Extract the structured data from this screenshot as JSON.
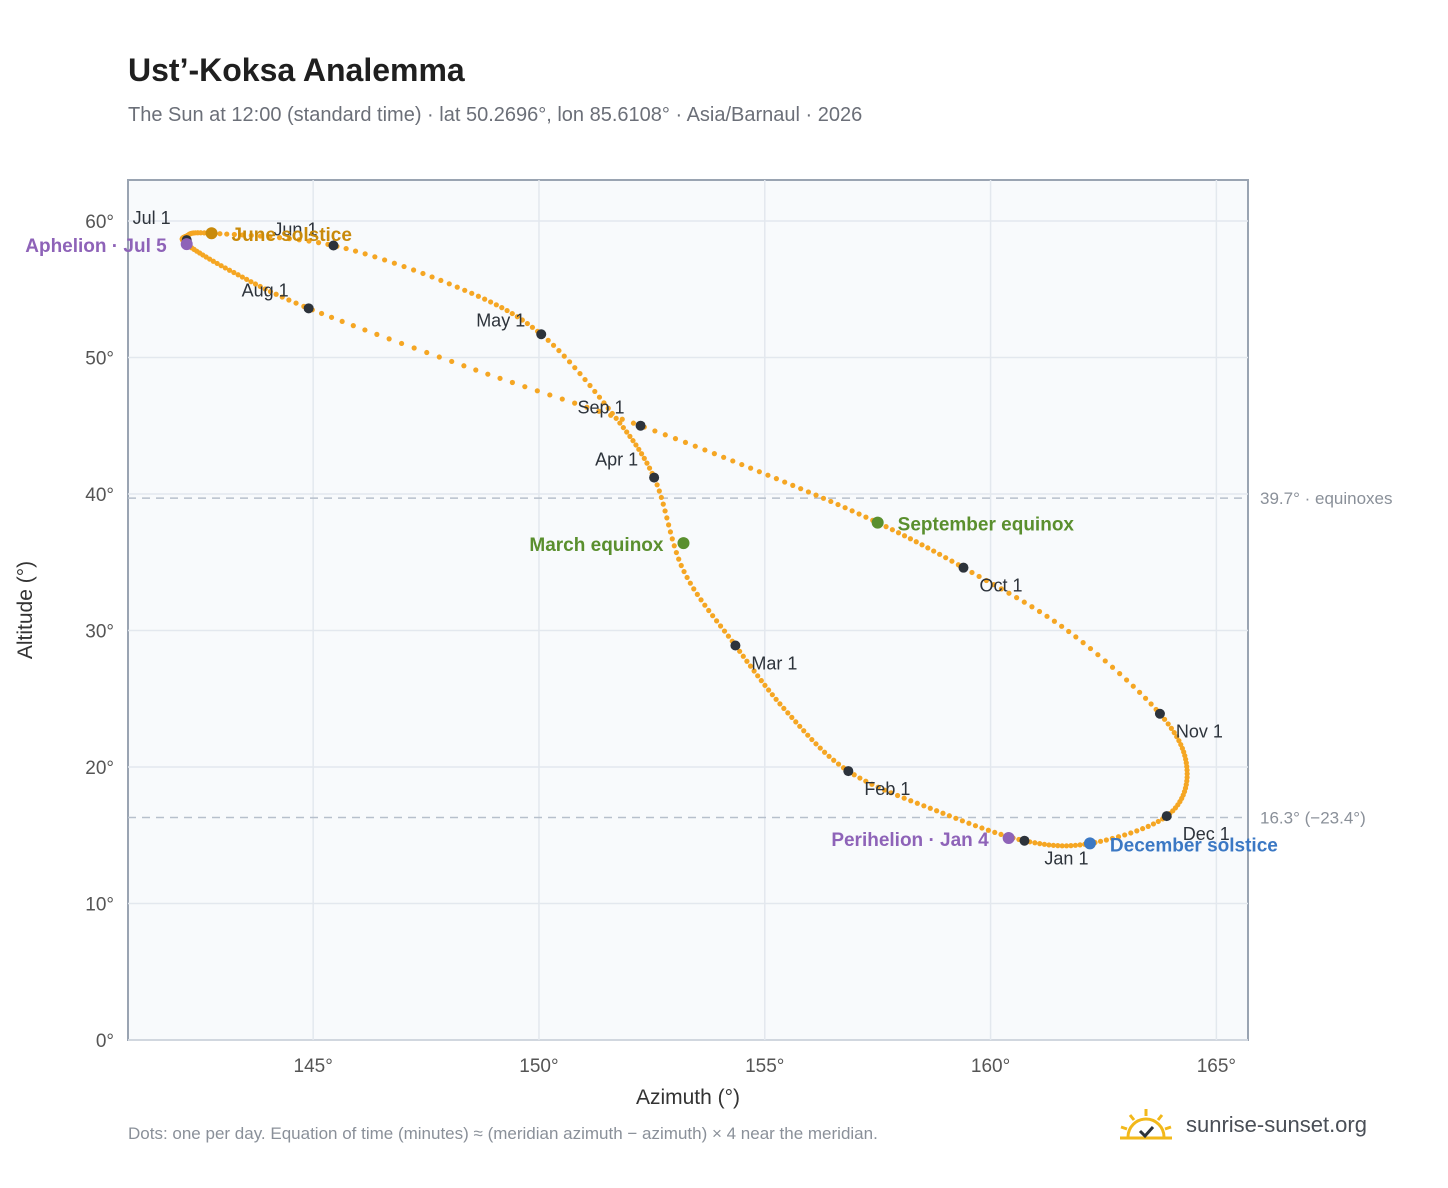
{
  "title": "Ust’-Koksa Analemma",
  "subtitle": "The Sun at 12:00 (standard time) · lat 50.2696°, lon 85.6108° · Asia/Barnaul · 2026",
  "footnote": "Dots: one per day. Equation of time (minutes) ≈ (meridian azimuth − azimuth) × 4 near the meridian.",
  "brand": {
    "name": "sunrise-sunset.org",
    "icon": "sun-check-icon"
  },
  "colors": {
    "curve": "#f5a623",
    "month_marker": "#2d333b",
    "june_solstice": "#c98a0a",
    "december_solstice": "#3b78c4",
    "equinox": "#5a8f2e",
    "apsis": "#8e63b8",
    "reference_line": "#b7c0cc",
    "plot_bg": "#f8fafc"
  },
  "chart_data": {
    "type": "scatter",
    "xlabel": "Azimuth (°)",
    "ylabel": "Altitude (°)",
    "xlim": [
      140.9,
      165.7
    ],
    "ylim": [
      0,
      63
    ],
    "xticks": [
      145,
      150,
      155,
      160,
      165
    ],
    "xtick_labels": [
      "145°",
      "150°",
      "155°",
      "160°",
      "165°"
    ],
    "yticks": [
      0,
      10,
      20,
      30,
      40,
      50,
      60
    ],
    "ytick_labels": [
      "0°",
      "10°",
      "20°",
      "30°",
      "40°",
      "50°",
      "60°"
    ],
    "grid": true,
    "curve_knots": [
      [
        160.75,
        14.6
      ],
      [
        158.8,
        16.8
      ],
      [
        156.85,
        19.7
      ],
      [
        155.5,
        24.0
      ],
      [
        154.35,
        28.9
      ],
      [
        153.2,
        34.4
      ],
      [
        152.55,
        41.2
      ],
      [
        151.6,
        46.0
      ],
      [
        150.05,
        51.7
      ],
      [
        148.3,
        55.0
      ],
      [
        145.45,
        58.2
      ],
      [
        142.75,
        59.1
      ],
      [
        142.2,
        58.9
      ],
      [
        142.2,
        58.3
      ],
      [
        143.2,
        56.3
      ],
      [
        144.9,
        53.6
      ],
      [
        148.5,
        49.2
      ],
      [
        152.25,
        45.0
      ],
      [
        155.2,
        41.2
      ],
      [
        157.5,
        37.9
      ],
      [
        159.4,
        34.6
      ],
      [
        161.7,
        30.0
      ],
      [
        163.75,
        23.9
      ],
      [
        164.35,
        19.8
      ],
      [
        163.9,
        16.4
      ],
      [
        162.2,
        14.4
      ],
      [
        160.75,
        14.6
      ]
    ],
    "month_markers": [
      {
        "label": "Jan 1",
        "azimuth": 160.75,
        "altitude": 14.6
      },
      {
        "label": "Feb 1",
        "azimuth": 156.85,
        "altitude": 19.7
      },
      {
        "label": "Mar 1",
        "azimuth": 154.35,
        "altitude": 28.9
      },
      {
        "label": "Apr 1",
        "azimuth": 152.55,
        "altitude": 41.2
      },
      {
        "label": "May 1",
        "azimuth": 150.05,
        "altitude": 51.7
      },
      {
        "label": "Jun 1",
        "azimuth": 145.45,
        "altitude": 58.2
      },
      {
        "label": "Jul 1",
        "azimuth": 142.2,
        "altitude": 58.6
      },
      {
        "label": "Aug 1",
        "azimuth": 144.9,
        "altitude": 53.6
      },
      {
        "label": "Sep 1",
        "azimuth": 152.25,
        "altitude": 45.0
      },
      {
        "label": "Oct 1",
        "azimuth": 159.4,
        "altitude": 34.6
      },
      {
        "label": "Nov 1",
        "azimuth": 163.75,
        "altitude": 23.9
      },
      {
        "label": "Dec 1",
        "azimuth": 163.9,
        "altitude": 16.4
      }
    ],
    "events": [
      {
        "label": "June solstice",
        "azimuth": 142.75,
        "altitude": 59.1,
        "color_key": "june_solstice"
      },
      {
        "label": "December solstice",
        "azimuth": 162.2,
        "altitude": 14.4,
        "color_key": "december_solstice"
      },
      {
        "label": "March equinox",
        "azimuth": 153.2,
        "altitude": 36.4,
        "color_key": "equinox"
      },
      {
        "label": "September equinox",
        "azimuth": 157.5,
        "altitude": 37.9,
        "color_key": "equinox"
      },
      {
        "label": "Aphelion · Jul 5",
        "azimuth": 142.2,
        "altitude": 58.3,
        "color_key": "apsis"
      },
      {
        "label": "Perihelion · Jan 4",
        "azimuth": 160.4,
        "altitude": 14.8,
        "color_key": "apsis"
      }
    ],
    "reference_lines": [
      {
        "value": 39.7,
        "label": "39.7° · equinoxes"
      },
      {
        "value": 16.3,
        "label": "16.3° (−23.4°)"
      }
    ]
  }
}
